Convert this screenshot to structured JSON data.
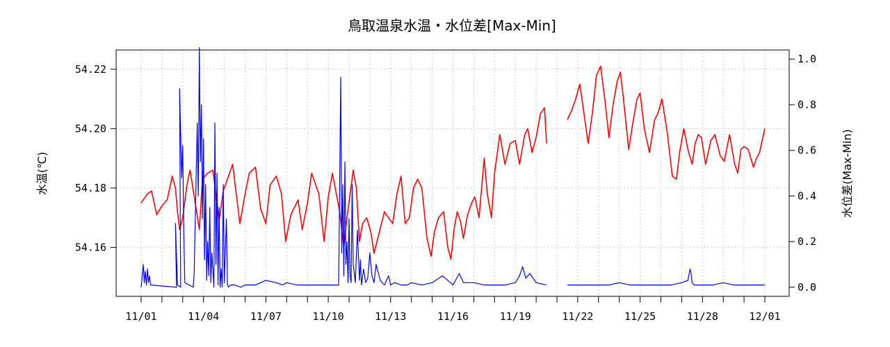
{
  "chart_data": {
    "type": "line",
    "title": "鳥取温泉水温・水位差[Max-Min]",
    "ylabel_left": "水温(℃)",
    "ylabel_right": "水位差(Max-Min)",
    "x_tick_labels": [
      "11/01",
      "11/04",
      "11/07",
      "11/10",
      "11/13",
      "11/16",
      "11/19",
      "11/22",
      "11/25",
      "11/28",
      "12/01"
    ],
    "x_tick_days": [
      0,
      3,
      6,
      9,
      12,
      15,
      18,
      21,
      24,
      27,
      30
    ],
    "x_minor_tick_days": [
      1,
      2,
      4,
      5,
      7,
      8,
      10,
      11,
      13,
      14,
      16,
      17,
      19,
      20,
      22,
      23,
      25,
      26,
      28,
      29
    ],
    "xlim": [
      -1.2,
      31.2
    ],
    "ylim_left": [
      54.1435,
      54.2265
    ],
    "yticks_left": [
      54.16,
      54.18,
      54.2,
      54.22
    ],
    "yticks_left_labels": [
      "54.16",
      "54.18",
      "54.20",
      "54.22"
    ],
    "ylim_right": [
      -0.04,
      1.04
    ],
    "yticks_right": [
      0.0,
      0.2,
      0.4,
      0.6,
      0.8,
      1.0
    ],
    "yticks_right_labels": [
      "0.0",
      "0.2",
      "0.4",
      "0.6",
      "0.8",
      "1.0"
    ],
    "grid": true,
    "series": [
      {
        "axis": "left",
        "color": "#ff0000",
        "segments": [
          {
            "x": [
              0.0,
              0.3,
              0.5,
              0.75,
              1.0,
              1.25,
              1.5,
              1.65,
              1.75,
              1.85,
              2.0,
              2.2,
              2.35,
              2.6,
              2.8,
              2.95,
              3.2,
              3.45,
              3.75,
              3.95,
              4.15,
              4.4,
              4.75,
              5.0,
              5.2,
              5.5,
              5.75,
              6.0,
              6.2,
              6.5,
              6.75,
              6.95,
              7.2,
              7.55,
              7.75,
              8.0,
              8.2,
              8.55,
              8.8,
              9.0,
              9.2,
              9.55,
              9.75,
              9.9,
              10.05,
              10.2,
              10.35,
              10.5,
              10.65,
              10.85,
              11.05,
              11.2,
              11.45,
              11.7,
              11.9,
              12.1,
              12.3,
              12.5,
              12.7,
              12.9,
              13.1,
              13.3,
              13.5,
              13.75,
              13.95,
              14.1,
              14.3,
              14.55,
              14.75,
              14.9,
              15.05,
              15.2,
              15.35,
              15.5,
              15.7,
              15.9,
              16.05,
              16.25,
              16.5,
              16.65,
              16.85,
              17.0,
              17.25,
              17.5,
              17.75,
              18.0,
              18.2,
              18.45,
              18.6,
              18.8,
              19.0,
              19.2,
              19.4,
              19.5
            ],
            "y": [
              54.175,
              54.178,
              54.179,
              54.171,
              54.174,
              54.176,
              54.184,
              54.18,
              54.172,
              54.166,
              54.17,
              54.181,
              54.186,
              54.175,
              54.166,
              54.183,
              54.185,
              54.186,
              54.169,
              54.179,
              54.183,
              54.188,
              54.168,
              54.178,
              54.185,
              54.187,
              54.173,
              54.168,
              54.181,
              54.184,
              54.178,
              54.162,
              54.171,
              54.176,
              54.166,
              54.175,
              54.185,
              54.178,
              54.162,
              54.177,
              54.185,
              54.172,
              54.16,
              54.17,
              54.178,
              54.186,
              54.18,
              54.162,
              54.168,
              54.17,
              54.165,
              54.158,
              54.165,
              54.172,
              54.17,
              54.168,
              54.178,
              54.184,
              54.168,
              54.17,
              54.18,
              54.183,
              54.18,
              54.163,
              54.157,
              54.165,
              54.17,
              54.172,
              54.16,
              54.156,
              54.166,
              54.172,
              54.169,
              54.163,
              54.171,
              54.175,
              54.177,
              54.17,
              54.19,
              54.178,
              54.17,
              54.185,
              54.198,
              54.188,
              54.195,
              54.196,
              54.188,
              54.198,
              54.2,
              54.192,
              54.197,
              54.205,
              54.207,
              54.195
            ]
          },
          {
            "x": [
              20.5,
              20.7,
              20.9,
              21.1,
              21.3,
              21.5,
              21.7,
              21.9,
              22.1,
              22.3,
              22.5,
              22.7,
              22.9,
              23.05,
              23.2,
              23.45,
              23.7,
              23.85,
              24.0,
              24.2,
              24.45,
              24.7,
              24.85,
              25.05,
              25.3,
              25.55,
              25.75,
              25.9,
              26.1,
              26.3,
              26.5,
              26.65,
              26.8,
              26.95,
              27.15,
              27.4,
              27.6,
              27.85,
              28.05,
              28.3,
              28.55,
              28.7,
              28.85,
              29.0,
              29.2,
              29.45,
              29.6,
              29.75,
              29.9,
              30.0
            ],
            "y": [
              54.203,
              54.206,
              54.21,
              54.215,
              54.205,
              54.195,
              54.205,
              54.218,
              54.221,
              54.21,
              54.197,
              54.208,
              54.216,
              54.219,
              54.21,
              54.193,
              54.204,
              54.21,
              54.212,
              54.2,
              54.192,
              54.203,
              54.205,
              54.21,
              54.199,
              54.184,
              54.183,
              54.192,
              54.2,
              54.193,
              54.188,
              54.195,
              54.198,
              54.197,
              54.188,
              54.196,
              54.198,
              54.191,
              54.189,
              54.198,
              54.188,
              54.185,
              54.193,
              54.194,
              54.193,
              54.187,
              54.19,
              54.192,
              54.197,
              54.2
            ]
          }
        ]
      },
      {
        "axis": "right",
        "color": "#0000ff",
        "segments": [
          {
            "x": [
              0.0,
              0.1,
              0.15,
              0.2,
              0.25,
              0.3,
              0.35,
              0.4,
              0.45,
              1.7,
              1.65,
              1.75,
              1.9,
              1.85,
              1.95,
              2.0,
              2.05,
              2.1,
              2.5,
              2.55,
              2.6,
              2.7,
              2.75,
              2.8,
              2.85,
              2.9,
              2.95,
              3.0,
              3.05,
              3.1,
              3.15,
              3.2,
              3.25,
              3.3,
              3.35,
              3.4,
              3.5,
              3.55,
              3.6,
              3.65,
              3.7,
              3.75,
              3.8,
              3.85,
              3.9,
              3.95,
              4.0,
              4.1,
              4.15,
              4.2,
              4.3,
              4.5,
              4.8,
              5.0,
              5.5,
              6.0,
              6.5,
              6.8,
              7.0,
              7.5,
              8.0,
              8.5,
              9.0,
              9.5,
              9.6,
              9.65,
              9.7,
              9.75,
              9.8,
              9.85,
              9.9,
              9.95,
              10.0,
              10.05,
              10.1,
              10.15,
              10.2,
              10.3,
              10.4,
              10.5,
              10.55,
              10.6,
              10.7,
              10.8,
              10.9,
              11.0,
              11.1,
              11.2,
              11.3,
              11.5,
              11.7,
              11.9,
              12.0,
              12.2,
              12.5,
              12.8,
              13.0,
              13.5,
              14.0,
              14.5,
              15.0,
              15.3,
              15.5,
              16.0,
              16.5,
              17.0,
              17.5,
              18.0,
              18.2,
              18.35,
              18.5,
              18.7,
              19.0,
              19.5
            ],
            "y": [
              0.0,
              0.1,
              0.02,
              0.07,
              0.01,
              0.08,
              0.02,
              0.05,
              0.01,
              0.0,
              0.28,
              0.01,
              0.0,
              0.87,
              0.48,
              0.62,
              0.25,
              0.02,
              0.0,
              0.05,
              0.28,
              0.72,
              0.4,
              1.05,
              0.55,
              0.8,
              0.3,
              0.65,
              0.12,
              0.45,
              0.03,
              0.2,
              0.05,
              0.35,
              0.02,
              0.15,
              0.0,
              0.72,
              0.1,
              0.5,
              0.01,
              0.35,
              0.0,
              0.08,
              0.0,
              0.45,
              0.02,
              0.3,
              0.01,
              0.0,
              0.01,
              0.01,
              0.0,
              0.01,
              0.01,
              0.03,
              0.02,
              0.01,
              0.02,
              0.01,
              0.01,
              0.01,
              0.01,
              0.01,
              0.92,
              0.15,
              0.45,
              0.05,
              0.55,
              0.1,
              0.2,
              0.02,
              0.3,
              0.05,
              0.02,
              0.45,
              0.1,
              0.02,
              0.25,
              0.03,
              0.12,
              0.01,
              0.08,
              0.02,
              0.04,
              0.15,
              0.05,
              0.02,
              0.1,
              0.03,
              0.01,
              0.05,
              0.01,
              0.02,
              0.01,
              0.01,
              0.02,
              0.01,
              0.02,
              0.05,
              0.01,
              0.06,
              0.02,
              0.02,
              0.01,
              0.01,
              0.01,
              0.02,
              0.05,
              0.09,
              0.04,
              0.06,
              0.02,
              0.01
            ]
          },
          {
            "x": [
              20.5,
              21.0,
              21.5,
              22.0,
              22.5,
              23.0,
              23.5,
              24.0,
              24.5,
              25.0,
              25.5,
              26.0,
              26.3,
              26.4,
              26.45,
              26.5,
              26.6,
              26.8,
              27.0,
              27.5,
              28.0,
              28.5,
              29.0,
              29.5,
              30.0
            ],
            "y": [
              0.01,
              0.01,
              0.01,
              0.01,
              0.01,
              0.02,
              0.01,
              0.01,
              0.01,
              0.01,
              0.01,
              0.02,
              0.03,
              0.08,
              0.06,
              0.02,
              0.01,
              0.01,
              0.01,
              0.01,
              0.02,
              0.01,
              0.01,
              0.01,
              0.01
            ]
          }
        ]
      }
    ]
  }
}
